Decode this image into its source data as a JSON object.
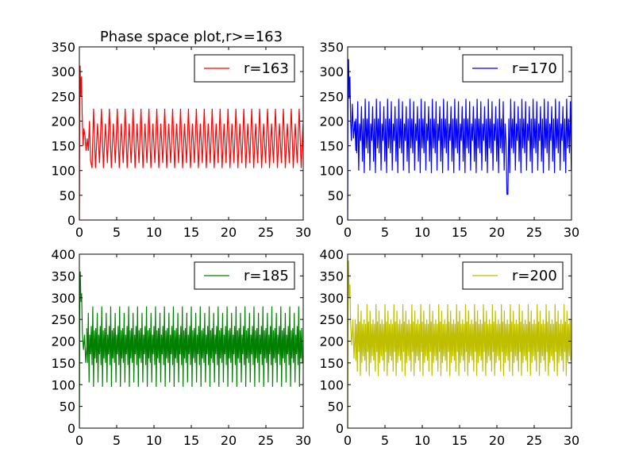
{
  "figure": {
    "background": "#ffffff"
  },
  "chart_data": [
    {
      "type": "line",
      "title": "Phase space plot,r>=163",
      "xlabel": "",
      "ylabel": "",
      "xlim": [
        0,
        30
      ],
      "ylim": [
        0,
        350
      ],
      "xticks": [
        0,
        5,
        10,
        15,
        20,
        25,
        30
      ],
      "yticks": [
        0,
        50,
        100,
        150,
        200,
        250,
        300,
        350
      ],
      "grid": false,
      "legend_position": "top-right",
      "series": [
        {
          "name": "r=163",
          "color": "#ff0000",
          "transient": [
            [
              0,
              0
            ],
            [
              0.05,
              290
            ],
            [
              0.1,
              312
            ],
            [
              0.18,
              250
            ],
            [
              0.28,
              290
            ],
            [
              0.38,
              210
            ],
            [
              0.5,
              150
            ],
            [
              0.6,
              185
            ],
            [
              0.75,
              170
            ],
            [
              0.9,
              140
            ],
            [
              1.05,
              165
            ],
            [
              1.2,
              140
            ],
            [
              1.35,
              200
            ],
            [
              1.5,
              120
            ],
            [
              1.7,
              105
            ],
            [
              1.9,
              225
            ]
          ],
          "oscillation": {
            "start": 1.9,
            "end": 30,
            "period": 0.53,
            "pattern": [
              225,
              105,
              195,
              115
            ]
          }
        }
      ]
    },
    {
      "type": "line",
      "title": "",
      "xlabel": "",
      "ylabel": "",
      "xlim": [
        0,
        30
      ],
      "ylim": [
        0,
        350
      ],
      "xticks": [
        0,
        5,
        10,
        15,
        20,
        25,
        30
      ],
      "yticks": [
        0,
        50,
        100,
        150,
        200,
        250,
        300,
        350
      ],
      "grid": false,
      "legend_position": "top-right",
      "series": [
        {
          "name": "r=170",
          "color": "#0000ff",
          "transient": [
            [
              0,
              0
            ],
            [
              0.05,
              310
            ],
            [
              0.12,
              325
            ],
            [
              0.2,
              245
            ],
            [
              0.3,
              290
            ],
            [
              0.4,
              200
            ],
            [
              0.5,
              160
            ],
            [
              0.62,
              235
            ],
            [
              0.78,
              165
            ],
            [
              0.95,
              200
            ],
            [
              1.1,
              140
            ]
          ],
          "oscillation": {
            "start": 1.1,
            "end": 30,
            "period": 0.25,
            "pattern": [
              205,
              135,
              240,
              100,
              195,
              160,
              230,
              118,
              205,
              95,
              245,
              145
            ],
            "dip": {
              "x": 21.4,
              "y": 52
            }
          }
        }
      ]
    },
    {
      "type": "line",
      "title": "",
      "xlabel": "",
      "ylabel": "",
      "xlim": [
        0,
        30
      ],
      "ylim": [
        0,
        400
      ],
      "xticks": [
        0,
        5,
        10,
        15,
        20,
        25,
        30
      ],
      "yticks": [
        0,
        50,
        100,
        150,
        200,
        250,
        300,
        350,
        400
      ],
      "grid": false,
      "legend_position": "top-right",
      "series": [
        {
          "name": "r=185",
          "color": "#008000",
          "transient": [
            [
              0,
              0
            ],
            [
              0.05,
              330
            ],
            [
              0.12,
              360
            ],
            [
              0.2,
              290
            ],
            [
              0.3,
              310
            ],
            [
              0.4,
              220
            ],
            [
              0.55,
              180
            ],
            [
              0.7,
              215
            ],
            [
              0.85,
              150
            ],
            [
              1.0,
              190
            ]
          ],
          "oscillation": {
            "start": 1.0,
            "end": 30,
            "period": 0.2,
            "pattern": [
              230,
              150,
              265,
              105,
              215,
              170,
              235,
              145,
              280,
              95,
              225,
              160
            ]
          }
        }
      ]
    },
    {
      "type": "line",
      "title": "",
      "xlabel": "",
      "ylabel": "",
      "xlim": [
        0,
        30
      ],
      "ylim": [
        0,
        400
      ],
      "xticks": [
        0,
        5,
        10,
        15,
        20,
        25,
        30
      ],
      "yticks": [
        0,
        50,
        100,
        150,
        200,
        250,
        300,
        350,
        400
      ],
      "grid": false,
      "legend_position": "top-right",
      "series": [
        {
          "name": "r=200",
          "color": "#bfbf00",
          "transient": [
            [
              0,
              0
            ],
            [
              0.05,
              360
            ],
            [
              0.12,
              385
            ],
            [
              0.2,
              300
            ],
            [
              0.3,
              330
            ],
            [
              0.4,
              240
            ],
            [
              0.55,
              190
            ],
            [
              0.7,
              250
            ],
            [
              0.85,
              160
            ],
            [
              1.0,
              230
            ]
          ],
          "oscillation": {
            "start": 1.0,
            "end": 30,
            "period": 0.2,
            "pattern": [
              250,
              155,
              240,
              130,
              285,
              175,
              245,
              120,
              270,
              150,
              240,
              165
            ]
          }
        }
      ]
    }
  ]
}
